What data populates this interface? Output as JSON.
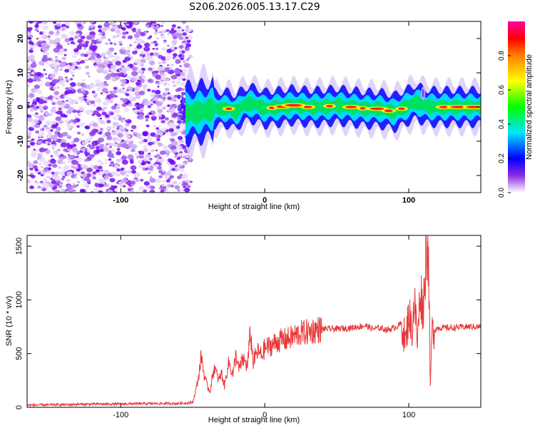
{
  "title": "S206.2026.005.13.17.C29",
  "chart_data": [
    {
      "type": "heatmap",
      "xlabel": "Height of straight line (km)",
      "ylabel": "Frequency (Hz)",
      "xlim": [
        -165,
        150
      ],
      "ylim": [
        -25,
        25
      ],
      "x_ticks": [
        -100,
        0,
        100
      ],
      "y_ticks": [
        -20,
        -10,
        0,
        10,
        20
      ],
      "colorbar": {
        "label": "Normalized spectral amplitude",
        "range": [
          0,
          1
        ],
        "ticks": [
          0.0,
          0.2,
          0.4,
          0.6,
          0.8
        ],
        "colors": [
          "#ffffff",
          "#8a2be2",
          "#0000ff",
          "#00e5ff",
          "#00ff00",
          "#ffff00",
          "#ff8000",
          "#ff0000",
          "#ff00a0"
        ]
      },
      "noise_region_x": [
        -165,
        -55
      ],
      "signal_ridge": {
        "x": [
          -55,
          -45,
          -35,
          -25,
          -20,
          -15,
          -10,
          -5,
          0,
          10,
          20,
          30,
          40,
          50,
          60,
          70,
          80,
          90,
          95,
          100,
          105,
          110,
          115,
          120,
          130,
          140,
          150
        ],
        "y": [
          -2,
          -1.5,
          -0.5,
          -0.5,
          -1.5,
          0.5,
          1,
          0.5,
          -0.5,
          0,
          0.5,
          0,
          0,
          0.5,
          0,
          -0.5,
          -0.5,
          -1.5,
          -0.5,
          0.5,
          1.5,
          0.5,
          0,
          0,
          0,
          0,
          0
        ]
      }
    },
    {
      "type": "line",
      "xlabel": "Height of straight line (km)",
      "ylabel": "SNR (10 * v/v)",
      "xlim": [
        -165,
        150
      ],
      "ylim": [
        0,
        1600
      ],
      "x_ticks": [
        -100,
        0,
        100
      ],
      "y_ticks": [
        0,
        500,
        1000,
        1500
      ],
      "line_color": "#e8383a",
      "series": [
        {
          "x": [
            -165,
            -140,
            -120,
            -100,
            -80,
            -60,
            -50,
            -48,
            -46,
            -44,
            -42,
            -40,
            -38,
            -35,
            -32,
            -30,
            -28,
            -25,
            -22,
            -20,
            -18,
            -15,
            -12,
            -10,
            -8,
            -5,
            -2,
            0,
            5,
            10,
            15,
            20,
            25,
            30,
            35,
            40,
            50,
            60,
            70,
            75,
            80,
            85,
            90,
            95,
            98,
            100,
            102,
            104,
            106,
            108,
            110,
            112,
            113,
            114,
            115,
            116,
            120,
            130,
            140,
            150
          ],
          "y": [
            20,
            25,
            30,
            30,
            35,
            35,
            45,
            150,
            280,
            480,
            300,
            200,
            150,
            380,
            250,
            320,
            200,
            420,
            300,
            500,
            350,
            450,
            380,
            700,
            420,
            520,
            480,
            550,
            580,
            620,
            630,
            660,
            690,
            700,
            720,
            730,
            730,
            740,
            760,
            730,
            740,
            720,
            740,
            780,
            600,
            900,
            700,
            1000,
            600,
            1100,
            900,
            1450,
            1580,
            1200,
            160,
            700,
            740,
            740,
            750,
            750
          ]
        }
      ]
    }
  ]
}
